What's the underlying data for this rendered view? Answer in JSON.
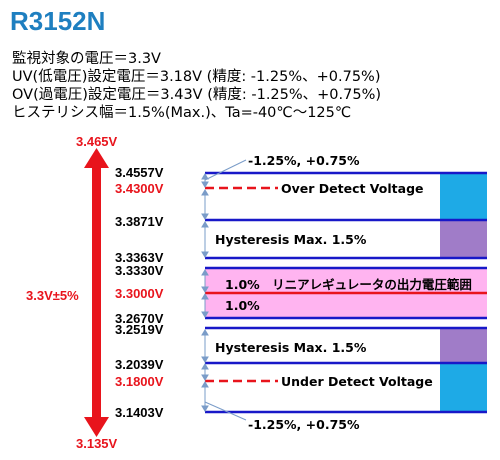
{
  "title": "R3152N",
  "info_lines": [
    "監視対象の電圧＝3.3V",
    "UV(低電圧)設定電圧＝3.18V (精度: -1.25%、+0.75%)",
    "OV(過電圧)設定電圧＝3.43V (精度: -1.25%、+0.75%)",
    "ヒステリシス幅＝1.5%(Max.)、Ta=-40℃～125℃"
  ],
  "range": {
    "top": "3.465V",
    "center": "3.3V±5%",
    "bottom": "3.135V"
  },
  "levels": {
    "v34557": "3.4557V",
    "v34300": "3.4300V",
    "v33871": "3.3871V",
    "v33363": "3.3363V",
    "v33330": "3.3330V",
    "v33000": "3.3000V",
    "v32670": "3.2670V",
    "v32519": "3.2519V",
    "v32039": "3.2039V",
    "v31800": "3.1800V",
    "v31403": "3.1403V"
  },
  "notes": {
    "ov_accuracy": "-1.25%, +0.75%",
    "ov_detect": "Over Detect Voltage",
    "ov_hysteresis": "Hysteresis Max. 1.5%",
    "regulator": "1.0%　リニアレギュレータの出力電圧範囲",
    "regulator_low": "1.0%",
    "uv_hysteresis": "Hysteresis Max. 1.5%",
    "uv_detect": "Under Detect Voltage",
    "uv_accuracy": "-1.25%, +0.75%"
  },
  "colors": {
    "title": "#1e7fc0",
    "red": "#e8141c",
    "blue_line": "#1818c8",
    "pink_band": "#ffb4f0",
    "cyan_bar": "#1eaae6",
    "purple_bar": "#a07cc8",
    "arrow": "#7a9cc8"
  }
}
